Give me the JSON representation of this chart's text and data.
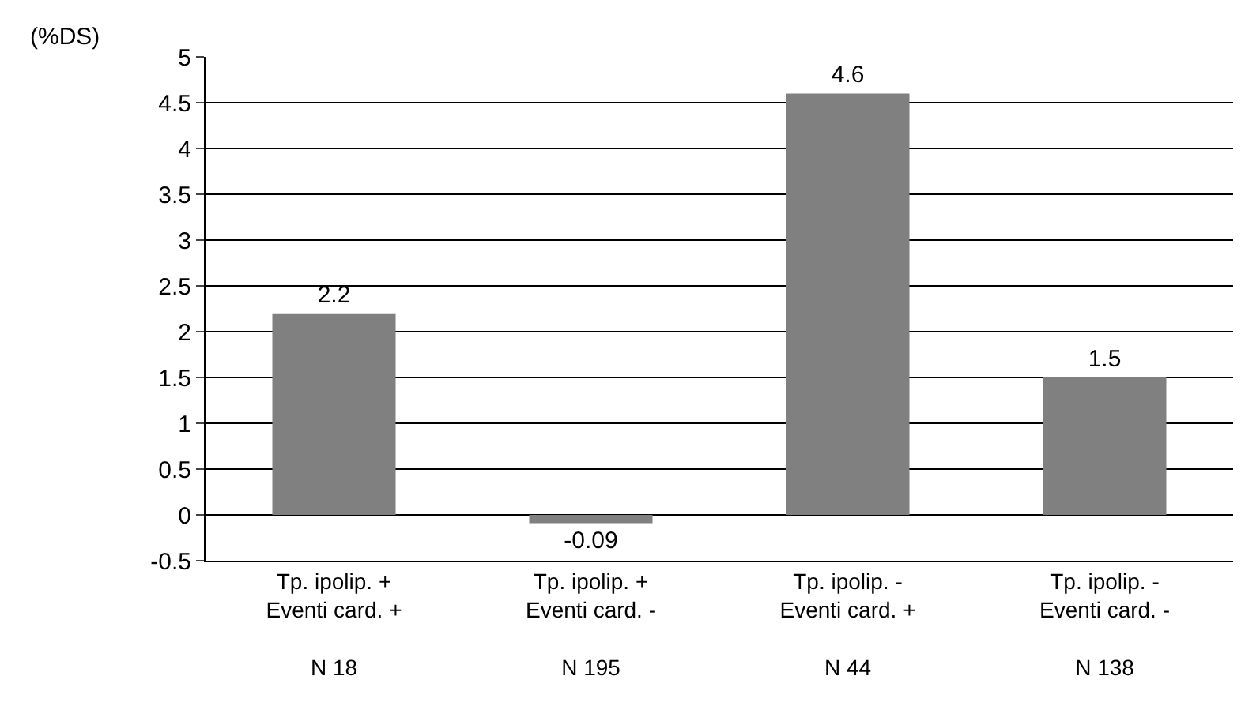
{
  "chart_data": {
    "type": "bar",
    "ylabel": "(%DS)",
    "categories": [
      "Tp. ipolip. +\nEventi card. +\n\nN 18",
      "Tp. ipolip. +\nEventi card. -\n\nN 195",
      "Tp. ipolip. -\nEventi card. +\n\nN 44",
      "Tp. ipolip. -\nEventi card. -\n\nN 138"
    ],
    "values": [
      2.2,
      -0.09,
      4.6,
      1.5
    ],
    "color": "#808080",
    "data_labels": true,
    "ylim": [
      -0.5,
      5
    ],
    "yticks": [
      -0.5,
      0,
      0.5,
      1,
      1.5,
      2,
      2.5,
      3,
      3.5,
      4,
      4.5,
      5
    ],
    "grid": "y",
    "legend": false
  }
}
